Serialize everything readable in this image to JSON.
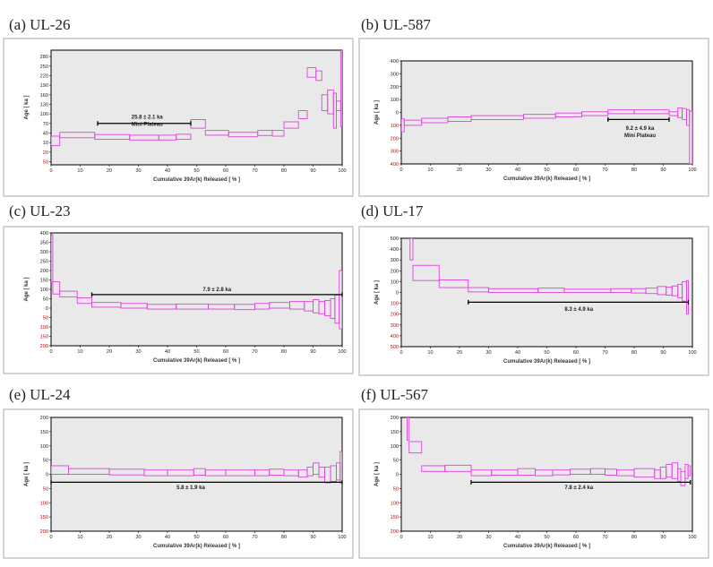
{
  "colors": {
    "spectrum": "#e040e0",
    "negative_tick": "#cc0000",
    "plot_bg": "#e9e9e9"
  },
  "chart_data": [
    {
      "type": "line",
      "title": "(a) UL-26",
      "xlabel": "Cumulative 39Ar(k) Released [ % ]",
      "ylabel": "Age [ ka ]",
      "xlim": [
        0,
        100
      ],
      "ylim": [
        -60,
        300
      ],
      "x_ticks": [
        0,
        10,
        20,
        30,
        40,
        50,
        60,
        70,
        80,
        90,
        100
      ],
      "y_ticks": [
        {
          "v": 280,
          "label": "280"
        },
        {
          "v": 250,
          "label": "250"
        },
        {
          "v": 220,
          "label": "220"
        },
        {
          "v": 190,
          "label": "190"
        },
        {
          "v": 160,
          "label": "160"
        },
        {
          "v": 130,
          "label": "130"
        },
        {
          "v": 100,
          "label": "100"
        },
        {
          "v": 70,
          "label": "70"
        },
        {
          "v": 40,
          "label": "40"
        },
        {
          "v": 10,
          "label": "10"
        },
        {
          "v": -20,
          "label": "20"
        },
        {
          "v": -50,
          "label": "50"
        }
      ],
      "steps": [
        {
          "x0": 0,
          "x1": 3,
          "lo": 0,
          "hi": 30
        },
        {
          "x0": 3,
          "x1": 15,
          "lo": 25,
          "hi": 42
        },
        {
          "x0": 15,
          "x1": 27,
          "lo": 20,
          "hi": 35
        },
        {
          "x0": 27,
          "x1": 37,
          "lo": 18,
          "hi": 33
        },
        {
          "x0": 37,
          "x1": 43,
          "lo": 18,
          "hi": 33
        },
        {
          "x0": 43,
          "x1": 48,
          "lo": 20,
          "hi": 36
        },
        {
          "x0": 48,
          "x1": 53,
          "lo": 55,
          "hi": 82
        },
        {
          "x0": 53,
          "x1": 61,
          "lo": 33,
          "hi": 48
        },
        {
          "x0": 61,
          "x1": 71,
          "lo": 28,
          "hi": 42
        },
        {
          "x0": 71,
          "x1": 76,
          "lo": 32,
          "hi": 48
        },
        {
          "x0": 76,
          "x1": 80,
          "lo": 30,
          "hi": 48
        },
        {
          "x0": 80,
          "x1": 85,
          "lo": 55,
          "hi": 75
        },
        {
          "x0": 85,
          "x1": 88,
          "lo": 85,
          "hi": 110
        },
        {
          "x0": 88,
          "x1": 91,
          "lo": 215,
          "hi": 245
        },
        {
          "x0": 91,
          "x1": 93,
          "lo": 205,
          "hi": 235
        },
        {
          "x0": 93,
          "x1": 95,
          "lo": 110,
          "hi": 160
        },
        {
          "x0": 95,
          "x1": 97,
          "lo": 100,
          "hi": 175
        },
        {
          "x0": 97,
          "x1": 98,
          "lo": 55,
          "hi": 165
        },
        {
          "x0": 98,
          "x1": 99.5,
          "lo": 110,
          "hi": 140
        },
        {
          "x0": 99.5,
          "x1": 100,
          "lo": 60,
          "hi": 300
        }
      ],
      "plateau": {
        "x0": 16,
        "x1": 48,
        "y": 70
      },
      "annotation": [
        "25.8 ± 2.1 ka",
        "Mini Plateau"
      ],
      "annotation_pos": {
        "x": 33,
        "y": 85
      }
    },
    {
      "type": "line",
      "title": "(b) UL-587",
      "xlabel": "Cumulative 39Ar(k) Released [ % ]",
      "ylabel": "Age [ ka ]",
      "xlim": [
        0,
        100
      ],
      "ylim": [
        -400,
        400
      ],
      "x_ticks": [
        0,
        10,
        20,
        30,
        40,
        50,
        60,
        70,
        80,
        90,
        100
      ],
      "y_ticks": [
        {
          "v": 400,
          "label": "400"
        },
        {
          "v": 300,
          "label": "300"
        },
        {
          "v": 200,
          "label": "200"
        },
        {
          "v": 100,
          "label": "100"
        },
        {
          "v": 0,
          "label": "0"
        },
        {
          "v": -100,
          "label": "100"
        },
        {
          "v": -200,
          "label": "200"
        },
        {
          "v": -300,
          "label": "300"
        },
        {
          "v": -400,
          "label": "400"
        }
      ],
      "steps": [
        {
          "x0": 0,
          "x1": 1,
          "lo": -150,
          "hi": -50
        },
        {
          "x0": 1,
          "x1": 7,
          "lo": -100,
          "hi": -60
        },
        {
          "x0": 7,
          "x1": 16,
          "lo": -80,
          "hi": -45
        },
        {
          "x0": 16,
          "x1": 24,
          "lo": -70,
          "hi": -35
        },
        {
          "x0": 24,
          "x1": 42,
          "lo": -55,
          "hi": -25
        },
        {
          "x0": 42,
          "x1": 53,
          "lo": -45,
          "hi": -15
        },
        {
          "x0": 53,
          "x1": 62,
          "lo": -35,
          "hi": -5
        },
        {
          "x0": 62,
          "x1": 71,
          "lo": -25,
          "hi": 5
        },
        {
          "x0": 71,
          "x1": 80,
          "lo": -10,
          "hi": 20
        },
        {
          "x0": 80,
          "x1": 92,
          "lo": -10,
          "hi": 20
        },
        {
          "x0": 92,
          "x1": 95,
          "lo": -25,
          "hi": 5
        },
        {
          "x0": 95,
          "x1": 96.5,
          "lo": -40,
          "hi": 35
        },
        {
          "x0": 96.5,
          "x1": 98,
          "lo": -55,
          "hi": 30
        },
        {
          "x0": 98,
          "x1": 99,
          "lo": -100,
          "hi": 20
        },
        {
          "x0": 99,
          "x1": 100,
          "lo": -400,
          "hi": 10
        }
      ],
      "plateau": {
        "x0": 71,
        "x1": 92,
        "y": -55
      },
      "annotation": [
        "9.2 ± 4.9 ka",
        "Mini Plateau"
      ],
      "annotation_pos": {
        "x": 82,
        "y": -135
      }
    },
    {
      "type": "line",
      "title": "(c) UL-23",
      "xlabel": "Cumulative 39Ar(k) Released [ % ]",
      "ylabel": "Age [ ka ]",
      "xlim": [
        0,
        100
      ],
      "ylim": [
        -200,
        400
      ],
      "x_ticks": [
        0,
        10,
        20,
        30,
        40,
        50,
        60,
        70,
        80,
        90,
        100
      ],
      "y_ticks": [
        {
          "v": 400,
          "label": "400"
        },
        {
          "v": 350,
          "label": "350"
        },
        {
          "v": 300,
          "label": "300"
        },
        {
          "v": 250,
          "label": "250"
        },
        {
          "v": 200,
          "label": "200"
        },
        {
          "v": 150,
          "label": "150"
        },
        {
          "v": 100,
          "label": "100"
        },
        {
          "v": 50,
          "label": "50"
        },
        {
          "v": 0,
          "label": "0"
        },
        {
          "v": -50,
          "label": "50"
        },
        {
          "v": -100,
          "label": "100"
        },
        {
          "v": -150,
          "label": "150"
        },
        {
          "v": -200,
          "label": "200"
        }
      ],
      "steps": [
        {
          "x0": 0,
          "x1": 0.6,
          "lo": 140,
          "hi": 390
        },
        {
          "x0": 0.6,
          "x1": 3,
          "lo": 75,
          "hi": 140
        },
        {
          "x0": 3,
          "x1": 9,
          "lo": 60,
          "hi": 90
        },
        {
          "x0": 9,
          "x1": 14,
          "lo": 25,
          "hi": 55
        },
        {
          "x0": 14,
          "x1": 24,
          "lo": 5,
          "hi": 30
        },
        {
          "x0": 24,
          "x1": 33,
          "lo": 0,
          "hi": 25
        },
        {
          "x0": 33,
          "x1": 43,
          "lo": -5,
          "hi": 20
        },
        {
          "x0": 43,
          "x1": 54,
          "lo": -5,
          "hi": 22
        },
        {
          "x0": 54,
          "x1": 63,
          "lo": -5,
          "hi": 20
        },
        {
          "x0": 63,
          "x1": 70,
          "lo": -8,
          "hi": 20
        },
        {
          "x0": 70,
          "x1": 75,
          "lo": -5,
          "hi": 25
        },
        {
          "x0": 75,
          "x1": 82,
          "lo": 0,
          "hi": 30
        },
        {
          "x0": 82,
          "x1": 87,
          "lo": -5,
          "hi": 35
        },
        {
          "x0": 87,
          "x1": 90,
          "lo": -15,
          "hi": 35
        },
        {
          "x0": 90,
          "x1": 92,
          "lo": -25,
          "hi": 45
        },
        {
          "x0": 92,
          "x1": 94,
          "lo": -30,
          "hi": 35
        },
        {
          "x0": 94,
          "x1": 96,
          "lo": -40,
          "hi": 40
        },
        {
          "x0": 96,
          "x1": 97.5,
          "lo": -55,
          "hi": 50
        },
        {
          "x0": 97.5,
          "x1": 99,
          "lo": -80,
          "hi": 70
        },
        {
          "x0": 99,
          "x1": 100,
          "lo": -110,
          "hi": 200
        }
      ],
      "plateau": {
        "x0": 14,
        "x1": 100,
        "y": 72
      },
      "annotation": [
        "7.9 ± 2.8 ka"
      ],
      "annotation_pos": {
        "x": 57,
        "y": 90
      }
    },
    {
      "type": "line",
      "title": "(d) UL-17",
      "xlabel": "Cumulative 39Ar(k) Released [ % ]",
      "ylabel": "Age [ ka ]",
      "xlim": [
        0,
        100
      ],
      "ylim": [
        -500,
        500
      ],
      "x_ticks": [
        0,
        10,
        20,
        30,
        40,
        50,
        60,
        70,
        80,
        90,
        100
      ],
      "y_ticks": [
        {
          "v": 500,
          "label": "500"
        },
        {
          "v": 400,
          "label": "400"
        },
        {
          "v": 300,
          "label": "300"
        },
        {
          "v": 200,
          "label": "200"
        },
        {
          "v": 100,
          "label": "100"
        },
        {
          "v": 0,
          "label": "0"
        },
        {
          "v": -100,
          "label": "100"
        },
        {
          "v": -200,
          "label": "200"
        },
        {
          "v": -300,
          "label": "300"
        },
        {
          "v": -400,
          "label": "400"
        },
        {
          "v": -500,
          "label": "500"
        }
      ],
      "steps": [
        {
          "x0": 3,
          "x1": 4,
          "lo": 300,
          "hi": 500
        },
        {
          "x0": 4,
          "x1": 13,
          "lo": 110,
          "hi": 250
        },
        {
          "x0": 13,
          "x1": 23,
          "lo": 45,
          "hi": 115
        },
        {
          "x0": 23,
          "x1": 30,
          "lo": 5,
          "hi": 45
        },
        {
          "x0": 30,
          "x1": 47,
          "lo": 0,
          "hi": 35
        },
        {
          "x0": 47,
          "x1": 56,
          "lo": 0,
          "hi": 40
        },
        {
          "x0": 56,
          "x1": 72,
          "lo": 0,
          "hi": 30
        },
        {
          "x0": 72,
          "x1": 79,
          "lo": 0,
          "hi": 35
        },
        {
          "x0": 79,
          "x1": 84,
          "lo": -5,
          "hi": 35
        },
        {
          "x0": 84,
          "x1": 88,
          "lo": -10,
          "hi": 40
        },
        {
          "x0": 88,
          "x1": 91,
          "lo": -20,
          "hi": 55
        },
        {
          "x0": 91,
          "x1": 93,
          "lo": -25,
          "hi": 50
        },
        {
          "x0": 93,
          "x1": 95,
          "lo": -30,
          "hi": 60
        },
        {
          "x0": 95,
          "x1": 96.5,
          "lo": -50,
          "hi": 75
        },
        {
          "x0": 96.5,
          "x1": 98,
          "lo": -80,
          "hi": 100
        },
        {
          "x0": 98,
          "x1": 98.6,
          "lo": -200,
          "hi": 110
        }
      ],
      "plateau": {
        "x0": 23,
        "x1": 98.6,
        "y": -90
      },
      "annotation": [
        "8.3 ± 4.9 ka"
      ],
      "annotation_pos": {
        "x": 61,
        "y": -170
      }
    },
    {
      "type": "line",
      "title": "(e) UL-24",
      "xlabel": "Cumulative 39Ar(k) Released [ % ]",
      "ylabel": "Age [ ka ]",
      "xlim": [
        0,
        100
      ],
      "ylim": [
        -200,
        200
      ],
      "x_ticks": [
        0,
        10,
        20,
        30,
        40,
        50,
        60,
        70,
        80,
        90,
        100
      ],
      "y_ticks": [
        {
          "v": 200,
          "label": "200"
        },
        {
          "v": 150,
          "label": "150"
        },
        {
          "v": 100,
          "label": "100"
        },
        {
          "v": 50,
          "label": "50"
        },
        {
          "v": 0,
          "label": "0"
        },
        {
          "v": -50,
          "label": "50"
        },
        {
          "v": -100,
          "label": "100"
        },
        {
          "v": -150,
          "label": "150"
        },
        {
          "v": -200,
          "label": "200"
        }
      ],
      "steps": [
        {
          "x0": 0,
          "x1": 6,
          "lo": 0,
          "hi": 30
        },
        {
          "x0": 6,
          "x1": 20,
          "lo": 0,
          "hi": 20
        },
        {
          "x0": 20,
          "x1": 32,
          "lo": -2,
          "hi": 18
        },
        {
          "x0": 32,
          "x1": 40,
          "lo": -5,
          "hi": 15
        },
        {
          "x0": 40,
          "x1": 49,
          "lo": -5,
          "hi": 15
        },
        {
          "x0": 49,
          "x1": 53,
          "lo": -3,
          "hi": 20
        },
        {
          "x0": 53,
          "x1": 60,
          "lo": -5,
          "hi": 15
        },
        {
          "x0": 60,
          "x1": 70,
          "lo": -5,
          "hi": 15
        },
        {
          "x0": 70,
          "x1": 75,
          "lo": -5,
          "hi": 15
        },
        {
          "x0": 75,
          "x1": 80,
          "lo": -3,
          "hi": 18
        },
        {
          "x0": 80,
          "x1": 85,
          "lo": -5,
          "hi": 15
        },
        {
          "x0": 85,
          "x1": 88,
          "lo": -10,
          "hi": 15
        },
        {
          "x0": 88,
          "x1": 90,
          "lo": -5,
          "hi": 25
        },
        {
          "x0": 90,
          "x1": 92,
          "lo": 0,
          "hi": 40
        },
        {
          "x0": 92,
          "x1": 94,
          "lo": -10,
          "hi": 25
        },
        {
          "x0": 94,
          "x1": 96,
          "lo": -30,
          "hi": 25
        },
        {
          "x0": 96,
          "x1": 98,
          "lo": -25,
          "hi": 30
        },
        {
          "x0": 98,
          "x1": 99.3,
          "lo": -20,
          "hi": 40
        },
        {
          "x0": 99.3,
          "x1": 100,
          "lo": -30,
          "hi": 80
        }
      ],
      "plateau": {
        "x0": 0,
        "x1": 100,
        "y": -28
      },
      "annotation": [
        "5.8 ± 1.9 ka"
      ],
      "annotation_pos": {
        "x": 48,
        "y": -52
      }
    },
    {
      "type": "line",
      "title": "(f) UL-567",
      "xlabel": "Cumulative 39Ar(k) Released [ % ]",
      "ylabel": "Age [ ka ]",
      "xlim": [
        0,
        100
      ],
      "ylim": [
        -200,
        200
      ],
      "x_ticks": [
        0,
        10,
        20,
        30,
        40,
        50,
        60,
        70,
        80,
        90,
        100
      ],
      "y_ticks": [
        {
          "v": 200,
          "label": "200"
        },
        {
          "v": 150,
          "label": "150"
        },
        {
          "v": 100,
          "label": "100"
        },
        {
          "v": 50,
          "label": "50"
        },
        {
          "v": 0,
          "label": "0"
        },
        {
          "v": -50,
          "label": "50"
        },
        {
          "v": -100,
          "label": "100"
        },
        {
          "v": -150,
          "label": "150"
        },
        {
          "v": -200,
          "label": "200"
        }
      ],
      "steps": [
        {
          "x0": 2,
          "x1": 2.7,
          "lo": 120,
          "hi": 200
        },
        {
          "x0": 2.7,
          "x1": 7,
          "lo": 75,
          "hi": 115
        },
        {
          "x0": 7,
          "x1": 15,
          "lo": 10,
          "hi": 30
        },
        {
          "x0": 15,
          "x1": 24,
          "lo": 10,
          "hi": 32
        },
        {
          "x0": 24,
          "x1": 31,
          "lo": -5,
          "hi": 15
        },
        {
          "x0": 31,
          "x1": 40,
          "lo": -3,
          "hi": 15
        },
        {
          "x0": 40,
          "x1": 46,
          "lo": -3,
          "hi": 20
        },
        {
          "x0": 46,
          "x1": 52,
          "lo": -5,
          "hi": 15
        },
        {
          "x0": 52,
          "x1": 58,
          "lo": -2,
          "hi": 15
        },
        {
          "x0": 58,
          "x1": 65,
          "lo": 0,
          "hi": 18
        },
        {
          "x0": 65,
          "x1": 70,
          "lo": 0,
          "hi": 20
        },
        {
          "x0": 70,
          "x1": 74,
          "lo": -3,
          "hi": 18
        },
        {
          "x0": 74,
          "x1": 80,
          "lo": -5,
          "hi": 15
        },
        {
          "x0": 80,
          "x1": 87,
          "lo": -10,
          "hi": 20
        },
        {
          "x0": 87,
          "x1": 89,
          "lo": -15,
          "hi": 15
        },
        {
          "x0": 89,
          "x1": 91,
          "lo": -15,
          "hi": 25
        },
        {
          "x0": 91,
          "x1": 93,
          "lo": -10,
          "hi": 35
        },
        {
          "x0": 93,
          "x1": 95,
          "lo": -15,
          "hi": 40
        },
        {
          "x0": 95,
          "x1": 96,
          "lo": -25,
          "hi": 20
        },
        {
          "x0": 96,
          "x1": 97.5,
          "lo": -40,
          "hi": 10
        },
        {
          "x0": 97.5,
          "x1": 98.5,
          "lo": -15,
          "hi": 35
        },
        {
          "x0": 98.5,
          "x1": 99.3,
          "lo": -5,
          "hi": 30
        }
      ],
      "plateau": {
        "x0": 24,
        "x1": 99.3,
        "y": -28
      },
      "annotation": [
        "7.8 ± 2.4 ka"
      ],
      "annotation_pos": {
        "x": 61,
        "y": -52
      }
    }
  ]
}
